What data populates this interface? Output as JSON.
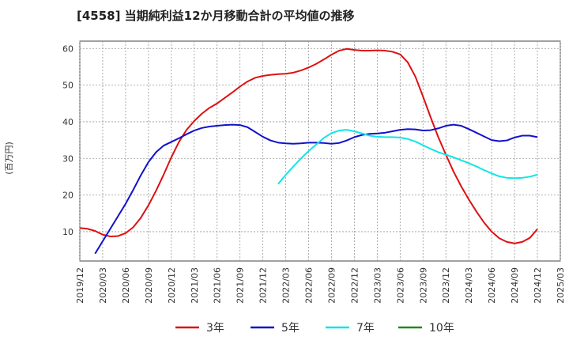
{
  "chart_data": {
    "type": "line",
    "title": "[4558]  当期純利益12か月移動合計の平均値の推移",
    "ylabel": "(百万円)",
    "xlabel": "",
    "ylim": [
      2,
      62
    ],
    "yticks": [
      10,
      20,
      30,
      40,
      50,
      60
    ],
    "grid": true,
    "legend_position": "bottom",
    "x_tick_labels": [
      "2019/12",
      "2020/03",
      "2020/06",
      "2020/09",
      "2020/12",
      "2021/03",
      "2021/06",
      "2021/09",
      "2021/12",
      "2022/03",
      "2022/06",
      "2022/09",
      "2022/12",
      "2023/03",
      "2023/06",
      "2023/09",
      "2023/12",
      "2024/03",
      "2024/06",
      "2024/09",
      "2024/12",
      "2025/03"
    ],
    "series": [
      {
        "name": "3年",
        "color": "#dd1111",
        "start_index": 0,
        "values": [
          11.0,
          10.8,
          10.2,
          9.2,
          8.7,
          8.8,
          9.6,
          11.2,
          13.8,
          17.2,
          21.2,
          25.6,
          30.3,
          34.5,
          37.8,
          40.2,
          42.2,
          43.8,
          45.0,
          46.5,
          48.0,
          49.6,
          51.0,
          52.0,
          52.5,
          52.8,
          53.0,
          53.1,
          53.4,
          54.0,
          54.8,
          55.8,
          57.0,
          58.3,
          59.4,
          59.9,
          59.6,
          59.4,
          59.4,
          59.5,
          59.4,
          59.1,
          58.4,
          56.2,
          52.3,
          46.9,
          41.2,
          35.8,
          31.0,
          26.4,
          22.4,
          18.8,
          15.5,
          12.5,
          10.0,
          8.2,
          7.2,
          6.8,
          7.2,
          8.3,
          10.7
        ]
      },
      {
        "name": "5年",
        "color": "#1111cc",
        "start_index": 2,
        "values": [
          4.0,
          7.4,
          10.8,
          14.2,
          17.6,
          21.4,
          25.4,
          29.0,
          31.7,
          33.5,
          34.5,
          35.5,
          36.6,
          37.6,
          38.3,
          38.7,
          38.9,
          39.1,
          39.2,
          39.1,
          38.5,
          37.2,
          35.9,
          34.9,
          34.3,
          34.1,
          34.0,
          34.1,
          34.3,
          34.3,
          34.2,
          34.0,
          34.2,
          34.9,
          35.8,
          36.4,
          36.7,
          36.8,
          37.0,
          37.4,
          37.8,
          38.0,
          37.9,
          37.6,
          37.7,
          38.2,
          38.9,
          39.2,
          38.9,
          38.0,
          37.0,
          36.0,
          35.0,
          34.7,
          34.9,
          35.7,
          36.2,
          36.2,
          35.8
        ]
      },
      {
        "name": "7年",
        "color": "#11e5e5",
        "start_index": 26,
        "values": [
          23.0,
          25.5,
          27.8,
          30.0,
          32.0,
          33.8,
          35.6,
          36.9,
          37.6,
          37.8,
          37.4,
          36.8,
          36.2,
          35.9,
          35.8,
          35.8,
          35.7,
          35.3,
          34.6,
          33.6,
          32.6,
          31.7,
          31.0,
          30.3,
          29.5,
          28.7,
          27.8,
          26.8,
          25.9,
          25.1,
          24.7,
          24.6,
          24.7,
          25.0,
          25.6
        ]
      },
      {
        "name": "10年",
        "color": "#228822",
        "start_index": 0,
        "values": []
      }
    ]
  }
}
